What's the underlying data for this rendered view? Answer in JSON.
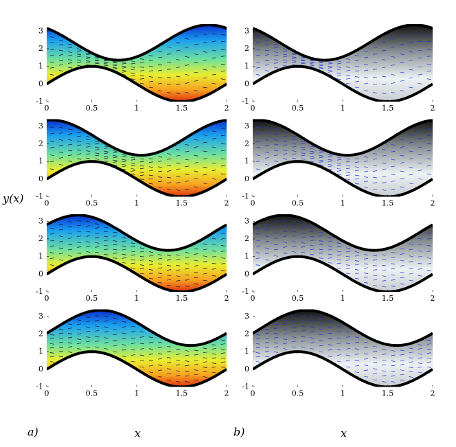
{
  "chart_data": [
    {
      "type": "field",
      "xlim": [
        0,
        2
      ],
      "ylim": [
        -1,
        3.4
      ],
      "xticks": [
        0,
        0.5,
        1,
        1.5,
        2
      ],
      "yticks": [
        -1,
        0,
        1,
        2,
        3
      ]
    },
    {
      "type": "field",
      "xlim": [
        0,
        2
      ],
      "ylim": [
        -1,
        3.4
      ],
      "xticks": [
        0,
        0.5,
        1,
        1.5,
        2
      ],
      "yticks": [
        -1,
        0,
        1,
        2,
        3
      ]
    },
    {
      "type": "field",
      "xlim": [
        0,
        2
      ],
      "ylim": [
        -1,
        3.4
      ],
      "xticks": [
        0,
        0.5,
        1,
        1.5,
        2
      ],
      "yticks": [
        -1,
        0,
        1,
        2,
        3
      ]
    },
    {
      "type": "field",
      "xlim": [
        0,
        2
      ],
      "ylim": [
        -1,
        3.4
      ],
      "xticks": [
        0,
        0.5,
        1,
        1.5,
        2
      ],
      "yticks": [
        -1,
        0,
        1,
        2,
        3
      ]
    },
    {
      "type": "field",
      "xlim": [
        0,
        2
      ],
      "ylim": [
        -1,
        3.4
      ],
      "xticks": [
        0,
        0.5,
        1,
        1.5,
        2
      ],
      "yticks": [
        -1,
        0,
        1,
        2,
        3
      ]
    },
    {
      "type": "field",
      "xlim": [
        0,
        2
      ],
      "ylim": [
        -1,
        3.4
      ],
      "xticks": [
        0,
        0.5,
        1,
        1.5,
        2
      ],
      "yticks": [
        -1,
        0,
        1,
        2,
        3
      ]
    },
    {
      "type": "field",
      "xlim": [
        0,
        2
      ],
      "ylim": [
        -1,
        3.4
      ],
      "xticks": [
        0,
        0.5,
        1,
        1.5,
        2
      ],
      "yticks": [
        -1,
        0,
        1,
        2,
        3
      ]
    },
    {
      "type": "field",
      "xlim": [
        0,
        2
      ],
      "ylim": [
        -1,
        3.4
      ],
      "xticks": [
        0,
        0.5,
        1,
        1.5,
        2
      ],
      "yticks": [
        -1,
        0,
        1,
        2,
        3
      ]
    }
  ],
  "y_label": "y(x)",
  "x_labels": [
    "x",
    "x"
  ],
  "panel_labels": [
    "a)",
    "b)"
  ]
}
